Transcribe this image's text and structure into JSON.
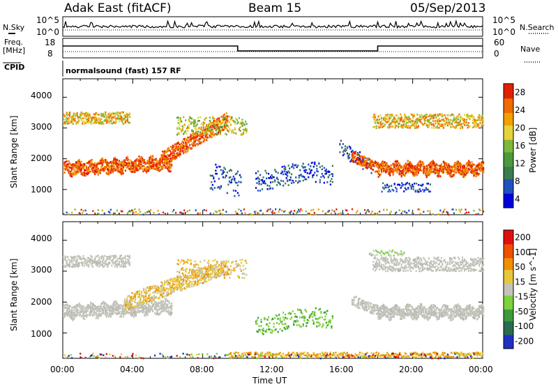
{
  "header": {
    "station": "Adak East (fitACF)",
    "beam": "Beam 15",
    "date": "05/Sep/2013"
  },
  "top_panels": {
    "left_labels": {
      "nsky": "N.Sky",
      "freq": "Freq.",
      "mhz": "[MHz]",
      "cpid": "CPID"
    },
    "right_labels": {
      "nsearch": "N.Search",
      "nave": "Nave"
    },
    "noise_ticks_left": [
      "10^5",
      "10^0"
    ],
    "noise_ticks_right": [
      "10^5",
      "10^0"
    ],
    "freq_ticks": [
      "18",
      "8"
    ],
    "nave_ticks": [
      "60",
      "0"
    ],
    "cpid_text": "normalsound (fast) 157 RF"
  },
  "chart_data": [
    {
      "type": "heatmap",
      "name": "power-panel",
      "ylabel": "Slant Range [km]",
      "yticks": [
        "4000",
        "3000",
        "2000",
        "1000"
      ],
      "ylim": [
        180,
        4600
      ],
      "xlim_hours": [
        0,
        24
      ],
      "colorbar": {
        "label": "Power [dB]",
        "ticks": [
          "28",
          "24",
          "20",
          "16",
          "12",
          "8",
          "4"
        ],
        "colors": [
          "#0000dd",
          "#2050c0",
          "#3c7a50",
          "#4c9a3c",
          "#7cb83c",
          "#e6d23c",
          "#f0a000",
          "#f06a00",
          "#e02000"
        ]
      }
    },
    {
      "type": "heatmap",
      "name": "velocity-panel",
      "ylabel": "Slant Range [km]",
      "yticks": [
        "4000",
        "3000",
        "2000",
        "1000"
      ],
      "ylim": [
        180,
        4600
      ],
      "xlim_hours": [
        0,
        24
      ],
      "colorbar": {
        "label": "Velocity [m s^-1]",
        "ticks": [
          "200",
          "100",
          "50",
          "15",
          "-15",
          "-50",
          "-100",
          "-200"
        ],
        "colors": [
          "#2030c0",
          "#2a6a50",
          "#3c9a3c",
          "#7ed23c",
          "#c4c4bc",
          "#e6c83c",
          "#f09000",
          "#f05000",
          "#e01010"
        ]
      }
    }
  ],
  "x_axis": {
    "ticks": [
      "00:00",
      "04:00",
      "08:00",
      "12:00",
      "16:00",
      "20:00",
      "00:00"
    ],
    "label": "Time UT"
  }
}
